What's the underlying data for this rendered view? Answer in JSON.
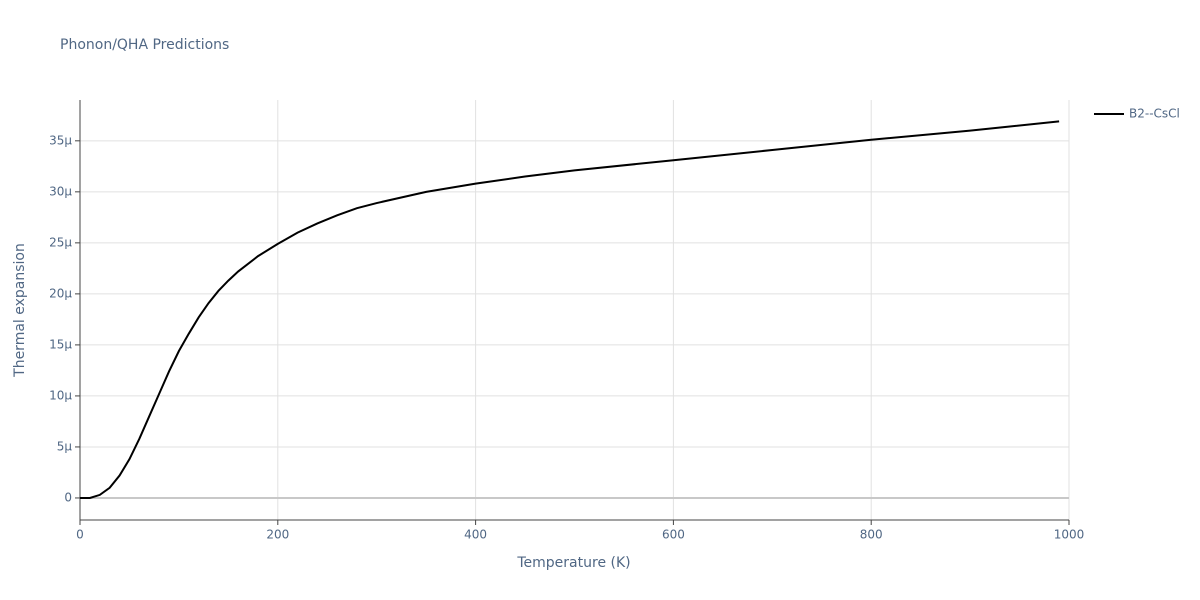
{
  "chart_data": {
    "type": "line",
    "title": "Phonon/QHA Predictions",
    "x_label": "Temperature (K)",
    "y_label": "Thermal expansion",
    "x": [
      0,
      10,
      20,
      30,
      40,
      50,
      60,
      70,
      80,
      90,
      100,
      110,
      120,
      130,
      140,
      150,
      160,
      180,
      200,
      220,
      240,
      260,
      280,
      300,
      350,
      400,
      450,
      500,
      600,
      700,
      800,
      900,
      990
    ],
    "series": [
      {
        "name": "B2--CsCl",
        "color": "#000000",
        "values": [
          0,
          0,
          3e-07,
          1e-06,
          2.2e-06,
          3.8e-06,
          5.8e-06,
          8e-06,
          1.02e-05,
          1.24e-05,
          1.44e-05,
          1.61e-05,
          1.77e-05,
          1.91e-05,
          2.03e-05,
          2.13e-05,
          2.22e-05,
          2.37e-05,
          2.49e-05,
          2.6e-05,
          2.69e-05,
          2.77e-05,
          2.84e-05,
          2.89e-05,
          3e-05,
          3.08e-05,
          3.15e-05,
          3.21e-05,
          3.31e-05,
          3.41e-05,
          3.51e-05,
          3.6e-05,
          3.69e-05
        ]
      }
    ],
    "xlim": [
      0,
      1000
    ],
    "xticks": [
      0,
      200,
      400,
      600,
      800,
      1000
    ],
    "ylim": [
      -2.16e-06,
      3.9e-05
    ],
    "yticks": [
      0,
      {
        "value": 5e-06,
        "label": "5μ"
      },
      {
        "value": 1e-05,
        "label": "10μ"
      },
      {
        "value": 1.5e-05,
        "label": "15μ"
      },
      {
        "value": 2e-05,
        "label": "20μ"
      },
      {
        "value": 2.5e-05,
        "label": "25μ"
      },
      {
        "value": 3e-05,
        "label": "30μ"
      },
      {
        "value": 3.5e-05,
        "label": "35μ"
      }
    ],
    "grid": true,
    "legend": "top-right"
  }
}
